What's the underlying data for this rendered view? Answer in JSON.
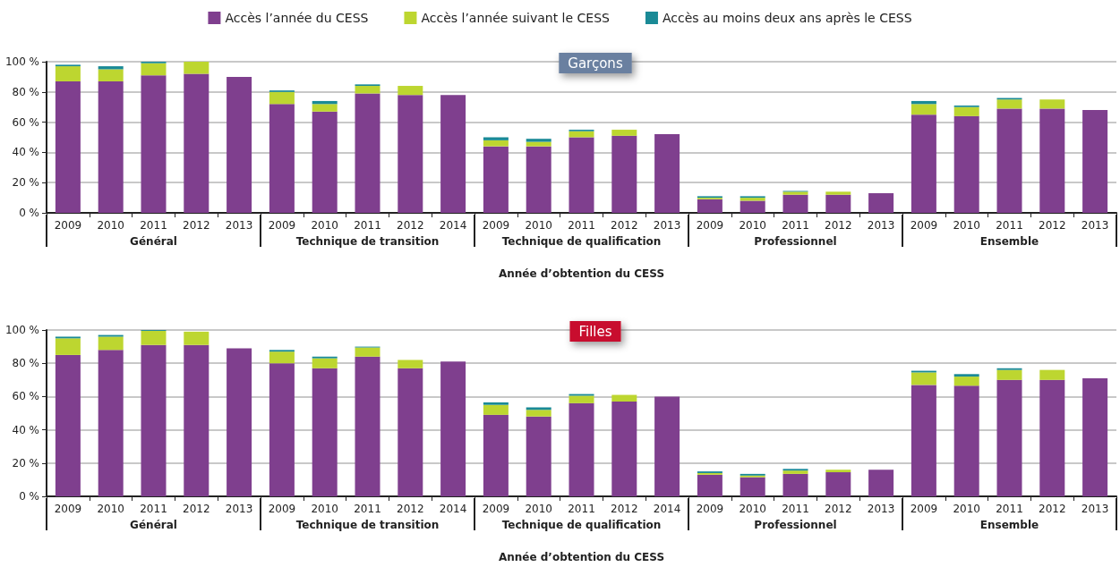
{
  "chart_data": [
    {
      "type": "bar",
      "title": "Garçons",
      "xlabel": "Année d’obtention du CESS",
      "stacked": true,
      "legend": "top",
      "grid": "y",
      "categories": [
        "2009",
        "2010",
        "2011",
        "2012",
        "2013",
        "2009",
        "2010",
        "2011",
        "2012",
        "2014",
        "2009",
        "2010",
        "2011",
        "2012",
        "2013",
        "2009",
        "2010",
        "2011",
        "2012",
        "2013",
        "2009",
        "2010",
        "2011",
        "2012",
        "2013"
      ],
      "annotations": [
        "Général",
        "Technique de transition",
        "Technique de qualification",
        "Professionnel",
        "Ensemble"
      ],
      "ylim": [
        0,
        100
      ],
      "yticks": [
        {
          "value": 0,
          "label": "0 %"
        },
        {
          "value": 20,
          "label": "20 %"
        },
        {
          "value": 40,
          "label": "40 %"
        },
        {
          "value": 60,
          "label": "60 %"
        },
        {
          "value": 80,
          "label": "80 %"
        },
        {
          "value": 100,
          "label": "100 %"
        }
      ],
      "series": [
        {
          "name": "Accès l’année du CESS",
          "color": "#7f3f8e",
          "values": [
            87,
            87,
            91,
            92,
            90,
            72,
            67,
            79,
            78,
            78,
            44,
            44,
            50,
            51,
            52,
            9,
            8,
            12,
            12,
            13,
            65,
            64,
            69,
            69,
            68
          ]
        },
        {
          "name": "Accès l’année suivant le CESS",
          "color": "#bdd630",
          "values": [
            10,
            8,
            8,
            8,
            0,
            8,
            5,
            5,
            6,
            0,
            4,
            3,
            4,
            4,
            0,
            1,
            2,
            2,
            2,
            0,
            7,
            6,
            6,
            6,
            0
          ]
        },
        {
          "name": "Accès au moins deux ans après le CESS",
          "color": "#1a8a96",
          "values": [
            1,
            2,
            1,
            0,
            0,
            1,
            2,
            1,
            0,
            0,
            2,
            2,
            1,
            0,
            0,
            1,
            1,
            0.5,
            0,
            0,
            2,
            1,
            1,
            0,
            0
          ]
        }
      ]
    },
    {
      "type": "bar",
      "title": "Filles",
      "xlabel": "Année d’obtention du CESS",
      "stacked": true,
      "grid": "y",
      "categories": [
        "2009",
        "2010",
        "2011",
        "2012",
        "2013",
        "2009",
        "2010",
        "2011",
        "2012",
        "2014",
        "2009",
        "2010",
        "2011",
        "2012",
        "2014",
        "2009",
        "2010",
        "2011",
        "2012",
        "2013",
        "2009",
        "2010",
        "2011",
        "2012",
        "2013"
      ],
      "annotations": [
        "Général",
        "Technique de transition",
        "Technique de qualification",
        "Professionnel",
        "Ensemble"
      ],
      "ylim": [
        0,
        100
      ],
      "yticks": [
        {
          "value": 0,
          "label": "0 %"
        },
        {
          "value": 20,
          "label": "20 %"
        },
        {
          "value": 40,
          "label": "40 %"
        },
        {
          "value": 60,
          "label": "60 %"
        },
        {
          "value": 80,
          "label": "80 %"
        },
        {
          "value": 100,
          "label": "100 %"
        }
      ],
      "series": [
        {
          "color": "#7f3f8e",
          "values": [
            85,
            88,
            91,
            91,
            89,
            80,
            77,
            84,
            77,
            81,
            49,
            48,
            56,
            57,
            60,
            13,
            11.5,
            13.5,
            14.5,
            16,
            67,
            66.5,
            70,
            70,
            71
          ]
        },
        {
          "color": "#bdd630",
          "values": [
            10,
            8,
            8.5,
            8,
            0,
            7,
            6,
            5.5,
            5,
            0,
            6,
            4,
            4.5,
            4,
            0,
            1,
            1,
            2,
            1.5,
            0,
            7.5,
            5.5,
            6,
            6,
            0
          ]
        },
        {
          "color": "#1a8a96",
          "values": [
            1,
            1,
            0.5,
            0,
            0,
            1,
            1,
            0.5,
            0,
            0,
            1.5,
            1.5,
            1,
            0,
            0,
            1,
            1,
            1,
            0,
            0,
            1,
            1.5,
            1,
            0,
            0
          ]
        }
      ]
    }
  ]
}
